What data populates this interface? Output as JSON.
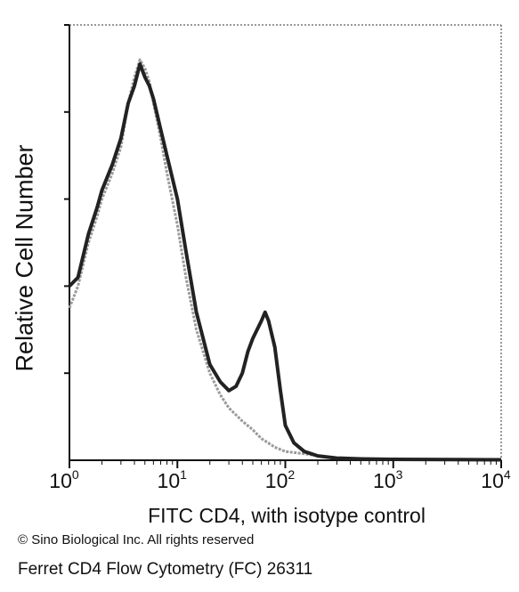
{
  "chart_data": {
    "type": "area",
    "title": "",
    "xlabel": "FITC  CD4,  with isotype control",
    "ylabel": "Relative Cell Number",
    "x_scale": "log",
    "xlim": [
      1,
      10000
    ],
    "ylim": [
      0,
      100
    ],
    "x_ticks": [
      {
        "base": "10",
        "exp": "0",
        "value": 1
      },
      {
        "base": "10",
        "exp": "1",
        "value": 10
      },
      {
        "base": "10",
        "exp": "2",
        "value": 100
      },
      {
        "base": "10",
        "exp": "3",
        "value": 1000
      },
      {
        "base": "10",
        "exp": "4",
        "value": 10000
      }
    ],
    "series": [
      {
        "role": "CD4",
        "color": "#222222",
        "x": [
          1.0,
          1.2,
          1.5,
          1.8,
          2.0,
          2.5,
          3.0,
          3.5,
          4.0,
          4.5,
          5.0,
          5.5,
          6.0,
          7.0,
          8.0,
          10,
          12,
          15,
          20,
          25,
          30,
          35,
          40,
          45,
          50,
          60,
          65,
          70,
          80,
          90,
          100,
          120,
          150,
          200,
          300,
          500,
          1000,
          10000
        ],
        "y": [
          40,
          42,
          52,
          58,
          62,
          68,
          74,
          82,
          86,
          91,
          88,
          86,
          83,
          76,
          70,
          60,
          48,
          34,
          22,
          18,
          16,
          17,
          20,
          25,
          28,
          32,
          34,
          32,
          26,
          16,
          8,
          4,
          2,
          1,
          0.5,
          0.3,
          0.2,
          0.1
        ]
      },
      {
        "role": "isotype control",
        "color": "#9a9a9a",
        "x": [
          1.0,
          1.2,
          1.5,
          1.8,
          2.0,
          2.5,
          3.0,
          3.5,
          4.0,
          4.5,
          5.0,
          5.5,
          6.0,
          7.0,
          8.0,
          10,
          12,
          15,
          20,
          25,
          30,
          40,
          50,
          60,
          80,
          100,
          150,
          200,
          300,
          500,
          1000,
          10000
        ],
        "y": [
          35,
          40,
          50,
          56,
          60,
          66,
          72,
          82,
          88,
          92,
          90,
          87,
          82,
          74,
          66,
          54,
          42,
          30,
          20,
          15,
          12,
          9,
          7,
          5,
          3,
          2,
          1.5,
          1,
          0.5,
          0.3,
          0.2,
          0.1
        ]
      }
    ]
  },
  "footer": {
    "copyright": "© Sino Biological Inc. All rights reserved",
    "caption": "Ferret CD4 Flow Cytometry (FC) 26311"
  }
}
